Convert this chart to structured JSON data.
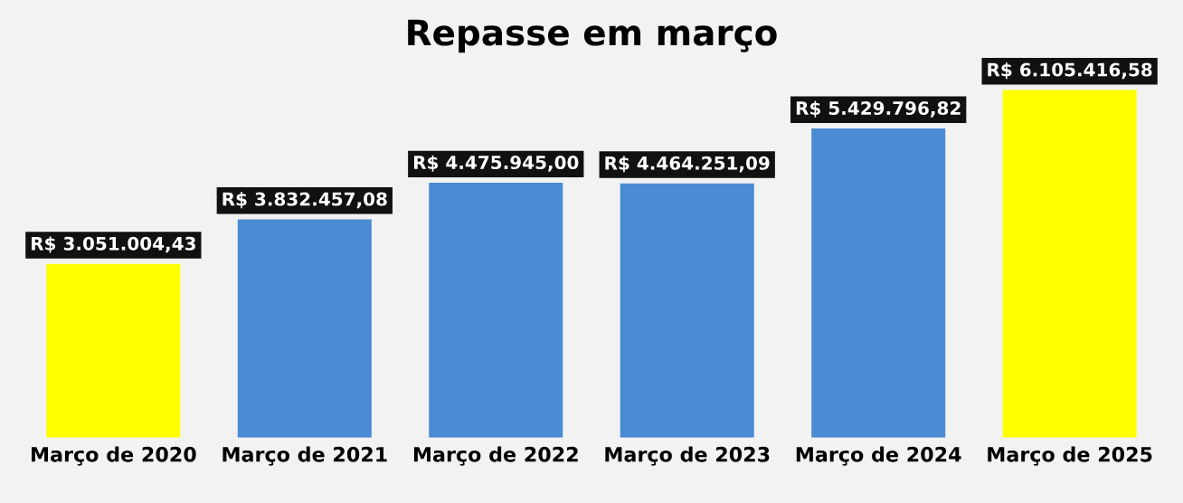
{
  "chart_data": {
    "type": "bar",
    "title": "Repasse em março",
    "categories": [
      "Março de 2020",
      "Março de 2021",
      "Março de 2022",
      "Março de 2023",
      "Março de 2024",
      "Março de 2025"
    ],
    "values": [
      3051004.43,
      3832457.08,
      4475945.0,
      4464251.09,
      5429796.82,
      6105416.58
    ],
    "colors": [
      "#ffff00",
      "#4a8bd3",
      "#4a8bd3",
      "#4a8bd3",
      "#4a8bd3",
      "#ffff00"
    ],
    "value_labels": [
      "R$ 3.051.004,43",
      "R$ 3.832.457,08",
      "R$ 4.475.945,00",
      "R$ 4.464.251,09",
      "R$ 5.429.796,82",
      "R$ 6.105.416,58"
    ],
    "tick_labels": "x",
    "grid": false,
    "legend": false
  }
}
